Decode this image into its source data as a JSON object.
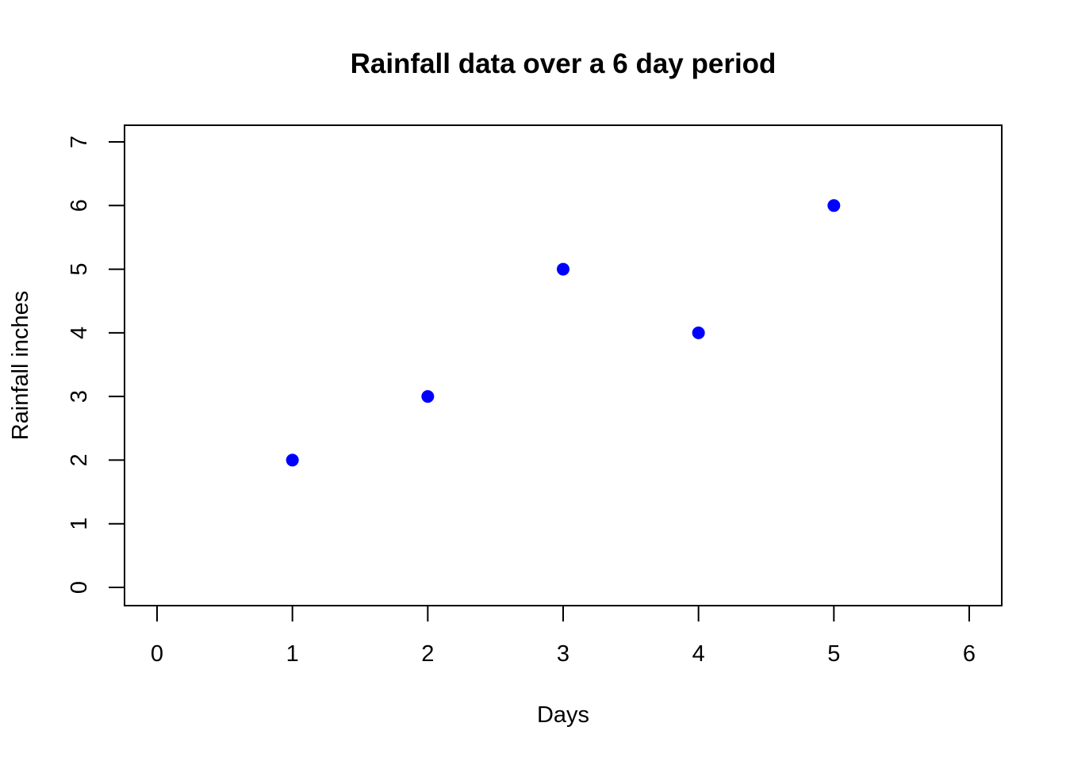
{
  "chart_data": {
    "type": "scatter",
    "title": "Rainfall data over a 6 day period",
    "xlabel": "Days",
    "ylabel": "Rainfall inches",
    "xlim": [
      0,
      6
    ],
    "ylim": [
      0,
      7
    ],
    "x_ticks": [
      "0",
      "1",
      "2",
      "3",
      "4",
      "5",
      "6"
    ],
    "y_ticks": [
      "0",
      "1",
      "2",
      "3",
      "4",
      "5",
      "6",
      "7"
    ],
    "grid": false,
    "marker_color": "#0000ff",
    "series": [
      {
        "x": [
          1,
          2,
          3,
          4,
          5
        ],
        "y": [
          2,
          3,
          5,
          4,
          6
        ]
      }
    ]
  }
}
